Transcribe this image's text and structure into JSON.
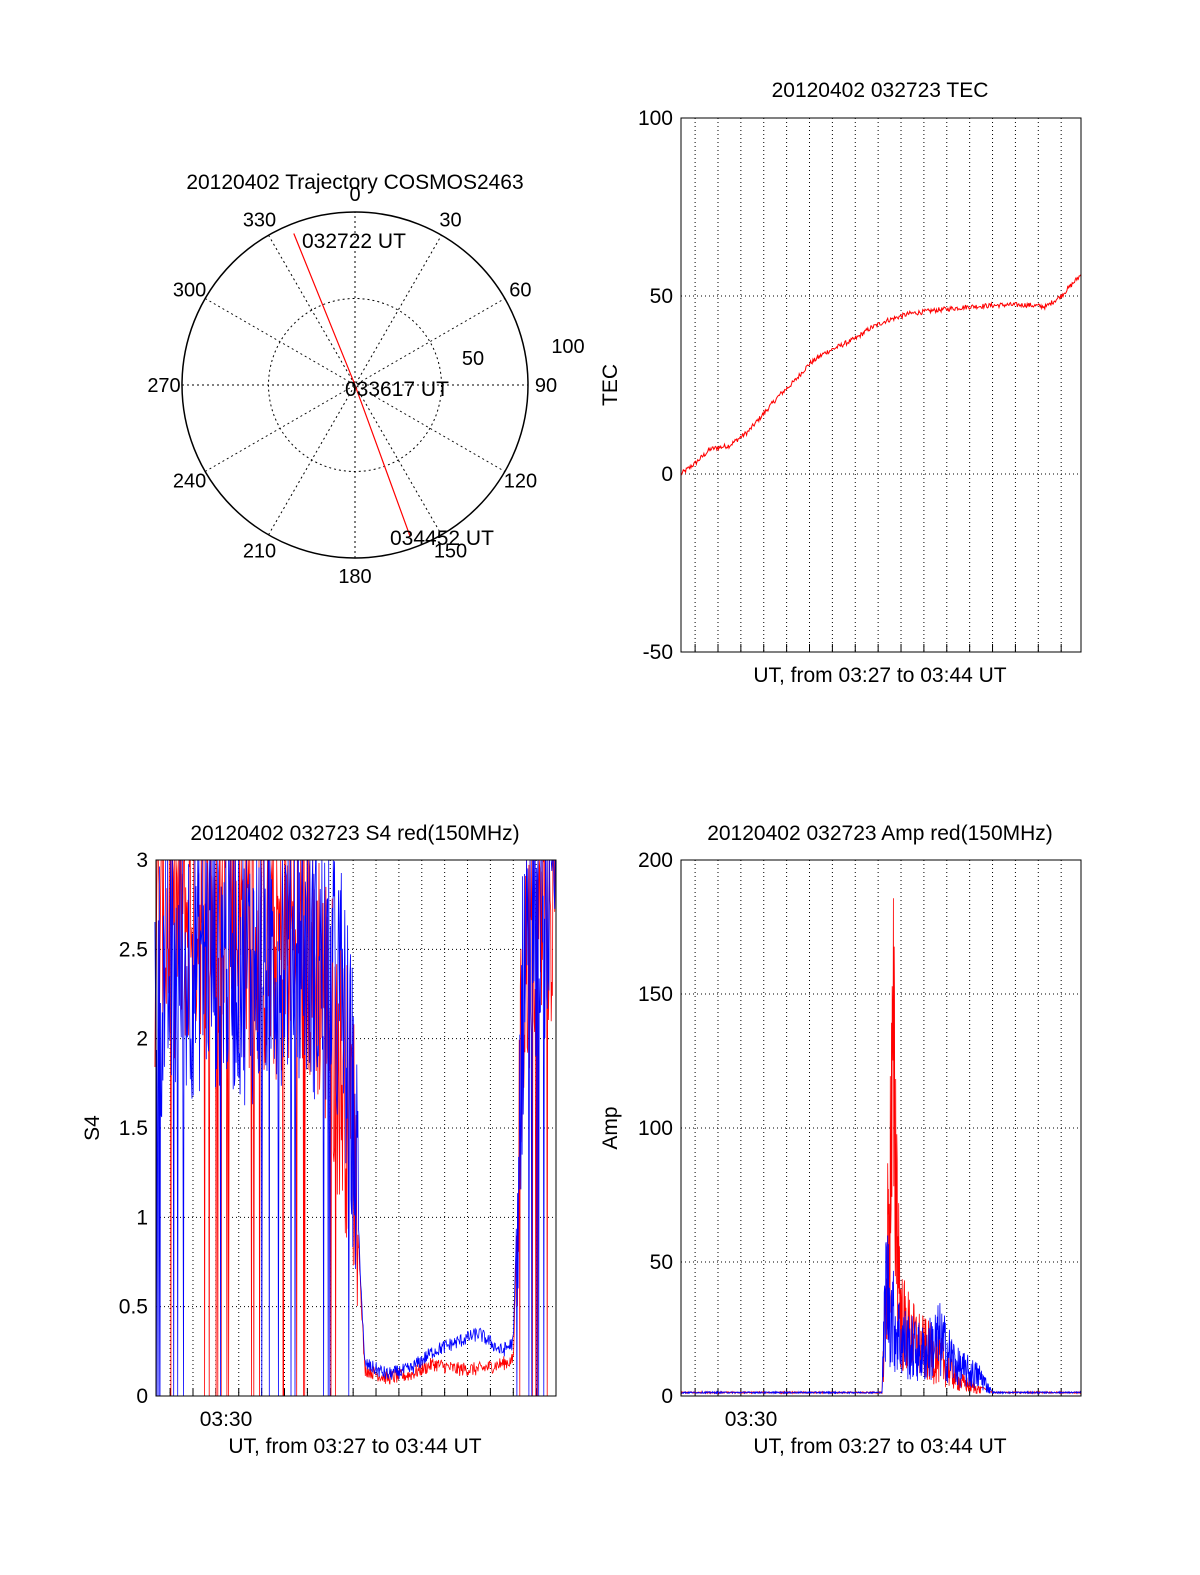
{
  "chart_data": [
    {
      "type": "polar",
      "title": "20120402 Trajectory COSMOS2463",
      "azimuth_labels": [
        "0",
        "30",
        "60",
        "90",
        "120",
        "150",
        "180",
        "210",
        "240",
        "270",
        "300",
        "330"
      ],
      "radial_labels": [
        "50",
        "100"
      ],
      "grid": true,
      "series": [
        {
          "color": "#ff0000",
          "points": [
            {
              "azimuth": 338,
              "elevation": 5
            },
            {
              "azimuth": 338,
              "elevation": 88
            },
            {
              "azimuth": 160,
              "elevation": 80
            },
            {
              "azimuth": 160,
              "elevation": 6
            }
          ]
        }
      ],
      "annotations": [
        {
          "text": "032722 UT"
        },
        {
          "text": "033617 UT"
        },
        {
          "text": "034452 UT"
        }
      ]
    },
    {
      "type": "line",
      "title": "20120402 032723 TEC",
      "xlabel": "UT, from 03:27 to 03:44 UT",
      "ylabel": "TEC",
      "xlim": [
        "03:27:23",
        "03:44:52"
      ],
      "ylim": [
        -50,
        100
      ],
      "yticks": [
        "100",
        "50",
        "0",
        "-50"
      ],
      "grid": true,
      "series": [
        {
          "color": "#ff0000",
          "x": [
            "03:27:23",
            "03:28:00",
            "03:28:40",
            "03:29:30",
            "03:30:20",
            "03:31:00",
            "03:31:40",
            "03:32:20",
            "03:33:00",
            "03:33:40",
            "03:34:20",
            "03:35:00",
            "03:35:40",
            "03:36:20",
            "03:37:20",
            "03:38:30",
            "03:40:00",
            "03:41:30",
            "03:42:30",
            "03:43:20",
            "03:44:00",
            "03:44:52"
          ],
          "y": [
            0,
            3,
            7,
            8,
            12,
            17,
            22,
            26,
            31,
            34,
            36,
            38,
            41,
            43,
            45,
            46,
            47,
            47.5,
            47.5,
            47,
            50,
            56
          ]
        }
      ]
    },
    {
      "type": "line",
      "title": "20120402 032723 S4 red(150MHz)",
      "xlabel": "UT, from 03:27 to 03:44 UT",
      "ylabel": "S4",
      "xlim": [
        "03:27:23",
        "03:44:52"
      ],
      "ylim": [
        0,
        3
      ],
      "yticks": [
        "3",
        "2.5",
        "2",
        "1.5",
        "1",
        "0.5",
        "0"
      ],
      "xticks": [
        "03:30"
      ],
      "grid": true,
      "series": [
        {
          "color": "#ff0000",
          "x": [
            "03:27:30",
            "03:28:30",
            "03:29:30",
            "03:30:30",
            "03:31:30",
            "03:32:30",
            "03:33:30",
            "03:34:30",
            "03:35:30",
            "03:36:00",
            "03:36:30",
            "03:37:30",
            "03:38:30",
            "03:39:30",
            "03:40:30",
            "03:41:30",
            "03:42:30",
            "03:43:00",
            "03:43:30",
            "03:44:30"
          ],
          "y": [
            2.6,
            2.7,
            2.8,
            2.7,
            2.6,
            2.5,
            2.6,
            2.4,
            1.8,
            1.5,
            0.15,
            0.1,
            0.12,
            0.18,
            0.15,
            0.15,
            0.18,
            0.2,
            2.5,
            2.8
          ]
        },
        {
          "color": "#0000ff",
          "x": [
            "03:27:30",
            "03:28:30",
            "03:29:30",
            "03:30:30",
            "03:31:30",
            "03:32:30",
            "03:33:30",
            "03:34:30",
            "03:35:30",
            "03:36:00",
            "03:36:30",
            "03:37:30",
            "03:38:30",
            "03:39:30",
            "03:40:30",
            "03:41:30",
            "03:42:30",
            "03:43:00",
            "03:43:30",
            "03:44:30"
          ],
          "y": [
            2.3,
            2.4,
            2.5,
            2.5,
            2.4,
            2.5,
            2.6,
            2.4,
            2.2,
            1.6,
            0.18,
            0.12,
            0.15,
            0.25,
            0.3,
            0.35,
            0.25,
            0.3,
            2.6,
            2.8
          ]
        }
      ]
    },
    {
      "type": "line",
      "title": "20120402 032723 Amp red(150MHz)",
      "xlabel": "UT, from 03:27 to 03:44 UT",
      "ylabel": "Amp",
      "xlim": [
        "03:27:23",
        "03:44:52"
      ],
      "ylim": [
        0,
        200
      ],
      "yticks": [
        "200",
        "150",
        "100",
        "50",
        "0"
      ],
      "xticks": [
        "03:30"
      ],
      "grid": true,
      "series": [
        {
          "color": "#ff0000",
          "x": [
            "03:27:23",
            "03:31:00",
            "03:35:00",
            "03:36:10",
            "03:36:20",
            "03:36:40",
            "03:37:00",
            "03:37:30",
            "03:38:00",
            "03:38:40",
            "03:39:30",
            "03:40:30",
            "03:41:00",
            "03:43:00",
            "03:44:52"
          ],
          "y": [
            1,
            1,
            1,
            1,
            50,
            160,
            40,
            30,
            25,
            20,
            8,
            3,
            1,
            1,
            1
          ]
        },
        {
          "color": "#0000ff",
          "x": [
            "03:27:23",
            "03:31:00",
            "03:35:00",
            "03:36:10",
            "03:36:20",
            "03:36:40",
            "03:37:00",
            "03:37:30",
            "03:38:00",
            "03:38:40",
            "03:39:30",
            "03:40:30",
            "03:41:00",
            "03:43:00",
            "03:44:52"
          ],
          "y": [
            1,
            1,
            1,
            1,
            60,
            40,
            30,
            25,
            22,
            30,
            15,
            10,
            1,
            1,
            1
          ]
        }
      ]
    }
  ]
}
